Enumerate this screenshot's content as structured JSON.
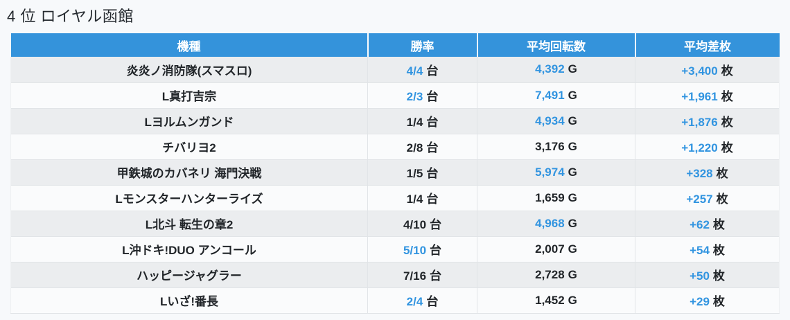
{
  "title": "4 位 ロイヤル函館",
  "table": {
    "headers": [
      "機種",
      "勝率",
      "平均回転数",
      "平均差枚"
    ],
    "units": {
      "win_rate": "台",
      "spins": "G",
      "diff": "枚"
    },
    "rows": [
      {
        "machine": "炎炎ノ消防隊(スマスロ)",
        "win_rate": "4/4",
        "win_rate_highlight": true,
        "spins": "4,392",
        "spins_highlight": true,
        "diff": "+3,400",
        "diff_highlight": true
      },
      {
        "machine": "L真打吉宗",
        "win_rate": "2/3",
        "win_rate_highlight": true,
        "spins": "7,491",
        "spins_highlight": true,
        "diff": "+1,961",
        "diff_highlight": true
      },
      {
        "machine": "Lヨルムンガンド",
        "win_rate": "1/4",
        "win_rate_highlight": false,
        "spins": "4,934",
        "spins_highlight": true,
        "diff": "+1,876",
        "diff_highlight": true
      },
      {
        "machine": "チバリヨ2",
        "win_rate": "2/8",
        "win_rate_highlight": false,
        "spins": "3,176",
        "spins_highlight": false,
        "diff": "+1,220",
        "diff_highlight": true
      },
      {
        "machine": "甲鉄城のカバネリ 海門決戦",
        "win_rate": "1/5",
        "win_rate_highlight": false,
        "spins": "5,974",
        "spins_highlight": true,
        "diff": "+328",
        "diff_highlight": true
      },
      {
        "machine": "Lモンスターハンターライズ",
        "win_rate": "1/4",
        "win_rate_highlight": false,
        "spins": "1,659",
        "spins_highlight": false,
        "diff": "+257",
        "diff_highlight": true
      },
      {
        "machine": "L北斗 転生の章2",
        "win_rate": "4/10",
        "win_rate_highlight": false,
        "spins": "4,968",
        "spins_highlight": true,
        "diff": "+62",
        "diff_highlight": true
      },
      {
        "machine": "L沖ドキ!DUO アンコール",
        "win_rate": "5/10",
        "win_rate_highlight": true,
        "spins": "2,007",
        "spins_highlight": false,
        "diff": "+54",
        "diff_highlight": true
      },
      {
        "machine": "ハッピージャグラー",
        "win_rate": "7/16",
        "win_rate_highlight": false,
        "spins": "2,728",
        "spins_highlight": false,
        "diff": "+50",
        "diff_highlight": true
      },
      {
        "machine": "Lいざ!番長",
        "win_rate": "2/4",
        "win_rate_highlight": true,
        "spins": "1,452",
        "spins_highlight": false,
        "diff": "+29",
        "diff_highlight": true
      }
    ]
  },
  "colors": {
    "header_bg": "#3493db",
    "header_text": "#ffffff",
    "highlight_blue": "#3194e0",
    "text_dark": "#212529",
    "row_stripe_bg": "#ebedef",
    "row_bg": "#fafbfc",
    "page_bg": "#f7f9fb",
    "border": "#e1e4e7"
  }
}
